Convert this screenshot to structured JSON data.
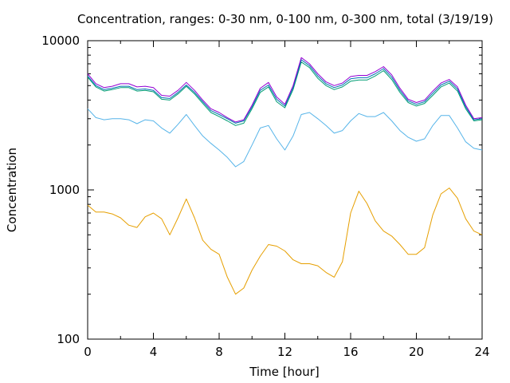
{
  "chart_data": {
    "type": "line",
    "title": "Concentration, ranges: 0-30 nm, 0-100 nm, 0-300 nm, total (3/19/19)",
    "xlabel": "Time [hour]",
    "ylabel": "Concentration",
    "xlim": [
      0,
      24
    ],
    "ylim": [
      100,
      10000
    ],
    "yscale": "log",
    "grid": false,
    "legend": "none",
    "x_ticks": [
      0,
      4,
      8,
      12,
      16,
      20,
      24
    ],
    "x_tick_labels": [
      "0",
      "4",
      "8",
      "12",
      "16",
      "20",
      "24"
    ],
    "y_ticks": [
      100,
      1000,
      10000
    ],
    "y_tick_labels": [
      "100",
      "1000",
      "10000"
    ],
    "series": [
      {
        "color": "#e69f00",
        "x": [
          0,
          0.5,
          1,
          1.5,
          2,
          2.5,
          3,
          3.5,
          4,
          4.5,
          5,
          5.5,
          6,
          6.5,
          7,
          7.5,
          8,
          8.5,
          9,
          9.5,
          10,
          10.5,
          11,
          11.5,
          12,
          12.5,
          13,
          13.5,
          14,
          14.5,
          15,
          15.5,
          16,
          16.5,
          17,
          17.5,
          18,
          18.5,
          19,
          19.5,
          20,
          20.5,
          21,
          21.5,
          22,
          22.5,
          23,
          23.5,
          24
        ],
        "values": [
          790,
          710,
          710,
          690,
          650,
          580,
          560,
          660,
          700,
          640,
          500,
          650,
          870,
          650,
          460,
          400,
          370,
          260,
          200,
          220,
          290,
          360,
          430,
          420,
          390,
          340,
          320,
          320,
          310,
          280,
          260,
          330,
          700,
          980,
          810,
          620,
          530,
          490,
          430,
          370,
          370,
          410,
          680,
          940,
          1030,
          880,
          640,
          530,
          500
        ]
      },
      {
        "color": "#56b4e9",
        "x": [
          0,
          0.5,
          1,
          1.5,
          2,
          2.5,
          3,
          3.5,
          4,
          4.5,
          5,
          5.5,
          6,
          6.5,
          7,
          7.5,
          8,
          8.5,
          9,
          9.5,
          10,
          10.5,
          11,
          11.5,
          12,
          12.5,
          13,
          13.5,
          14,
          14.5,
          15,
          15.5,
          16,
          16.5,
          17,
          17.5,
          18,
          18.5,
          19,
          19.5,
          20,
          20.5,
          21,
          21.5,
          22,
          22.5,
          23,
          23.5,
          24
        ],
        "values": [
          3500,
          3050,
          2950,
          3000,
          3000,
          2950,
          2780,
          2950,
          2900,
          2600,
          2400,
          2750,
          3200,
          2700,
          2300,
          2050,
          1850,
          1650,
          1430,
          1550,
          2000,
          2600,
          2700,
          2200,
          1850,
          2300,
          3200,
          3300,
          3000,
          2700,
          2400,
          2500,
          2900,
          3250,
          3100,
          3100,
          3300,
          2900,
          2500,
          2250,
          2120,
          2200,
          2700,
          3150,
          3150,
          2600,
          2100,
          1900,
          1850
        ]
      },
      {
        "color": "#009e73",
        "x": [
          0,
          0.5,
          1,
          1.5,
          2,
          2.5,
          3,
          3.5,
          4,
          4.5,
          5,
          5.5,
          6,
          6.5,
          7,
          7.5,
          8,
          8.5,
          9,
          9.5,
          10,
          10.5,
          11,
          11.5,
          12,
          12.5,
          13,
          13.5,
          14,
          14.5,
          15,
          15.5,
          16,
          16.5,
          17,
          17.5,
          18,
          18.5,
          19,
          19.5,
          20,
          20.5,
          21,
          21.5,
          22,
          22.5,
          23,
          23.5,
          24
        ],
        "values": [
          5700,
          4900,
          4600,
          4700,
          4850,
          4850,
          4600,
          4650,
          4550,
          4050,
          4000,
          4400,
          4950,
          4400,
          3800,
          3300,
          3100,
          2900,
          2700,
          2800,
          3500,
          4500,
          4900,
          3900,
          3550,
          4700,
          7200,
          6600,
          5600,
          5000,
          4700,
          4900,
          5350,
          5450,
          5450,
          5800,
          6300,
          5500,
          4500,
          3850,
          3650,
          3800,
          4300,
          4900,
          5200,
          4600,
          3500,
          2900,
          2950
        ]
      },
      {
        "color": "#0072b2",
        "x": [
          0,
          0.5,
          1,
          1.5,
          2,
          2.5,
          3,
          3.5,
          4,
          4.5,
          5,
          5.5,
          6,
          6.5,
          7,
          7.5,
          8,
          8.5,
          9,
          9.5,
          10,
          10.5,
          11,
          11.5,
          12,
          12.5,
          13,
          13.5,
          14,
          14.5,
          15,
          15.5,
          16,
          16.5,
          17,
          17.5,
          18,
          18.5,
          19,
          19.5,
          20,
          20.5,
          21,
          21.5,
          22,
          22.5,
          23,
          23.5,
          24
        ],
        "values": [
          5800,
          5000,
          4700,
          4800,
          4950,
          4950,
          4700,
          4750,
          4650,
          4150,
          4100,
          4500,
          5050,
          4500,
          3900,
          3400,
          3200,
          3000,
          2800,
          2900,
          3600,
          4650,
          5050,
          4050,
          3650,
          4850,
          7450,
          6800,
          5800,
          5150,
          4850,
          5050,
          5550,
          5650,
          5650,
          6000,
          6500,
          5700,
          4650,
          3950,
          3750,
          3900,
          4450,
          5050,
          5350,
          4750,
          3600,
          2950,
          3000
        ]
      },
      {
        "color": "#9400d3",
        "x": [
          0,
          0.5,
          1,
          1.5,
          2,
          2.5,
          3,
          3.5,
          4,
          4.5,
          5,
          5.5,
          6,
          6.5,
          7,
          7.5,
          8,
          8.5,
          9,
          9.5,
          10,
          10.5,
          11,
          11.5,
          12,
          12.5,
          13,
          13.5,
          14,
          14.5,
          15,
          15.5,
          16,
          16.5,
          17,
          17.5,
          18,
          18.5,
          19,
          19.5,
          20,
          20.5,
          21,
          21.5,
          22,
          22.5,
          23,
          23.5,
          24
        ],
        "values": [
          6000,
          5150,
          4850,
          4950,
          5150,
          5150,
          4900,
          4950,
          4850,
          4300,
          4250,
          4650,
          5250,
          4650,
          4000,
          3500,
          3300,
          3050,
          2850,
          2950,
          3700,
          4800,
          5250,
          4200,
          3750,
          5000,
          7700,
          7000,
          6000,
          5300,
          5000,
          5200,
          5750,
          5850,
          5850,
          6200,
          6700,
          5900,
          4800,
          4050,
          3850,
          4000,
          4600,
          5200,
          5500,
          4900,
          3700,
          3000,
          3050
        ]
      }
    ]
  }
}
